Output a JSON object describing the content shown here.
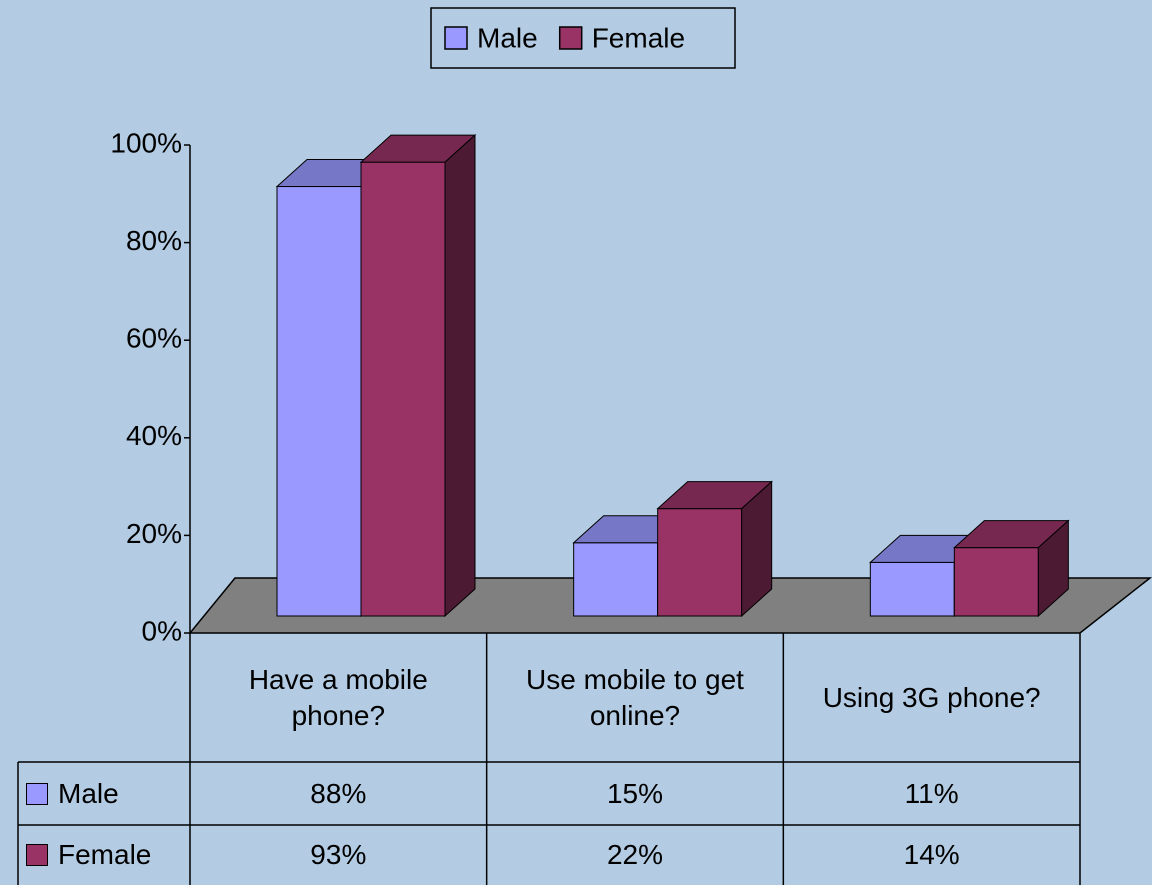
{
  "chart_data": {
    "type": "bar3d",
    "categories": [
      "Have a mobile phone?",
      "Use mobile to get online?",
      "Using 3G phone?"
    ],
    "series": [
      {
        "name": "Male",
        "color": "#9999ff",
        "values": [
          88,
          15,
          11
        ],
        "value_labels": [
          "88%",
          "15%",
          "11%"
        ]
      },
      {
        "name": "Female",
        "color": "#993366",
        "values": [
          93,
          22,
          14
        ],
        "value_labels": [
          "93%",
          "22%",
          "14%"
        ]
      }
    ],
    "ylim": [
      0,
      100
    ],
    "yticks": [
      {
        "value": 0,
        "label": "0%"
      },
      {
        "value": 20,
        "label": "20%"
      },
      {
        "value": 40,
        "label": "40%"
      },
      {
        "value": 60,
        "label": "60%"
      },
      {
        "value": 80,
        "label": "80%"
      },
      {
        "value": 100,
        "label": "100%"
      }
    ],
    "legend": "top",
    "data_table": true
  }
}
